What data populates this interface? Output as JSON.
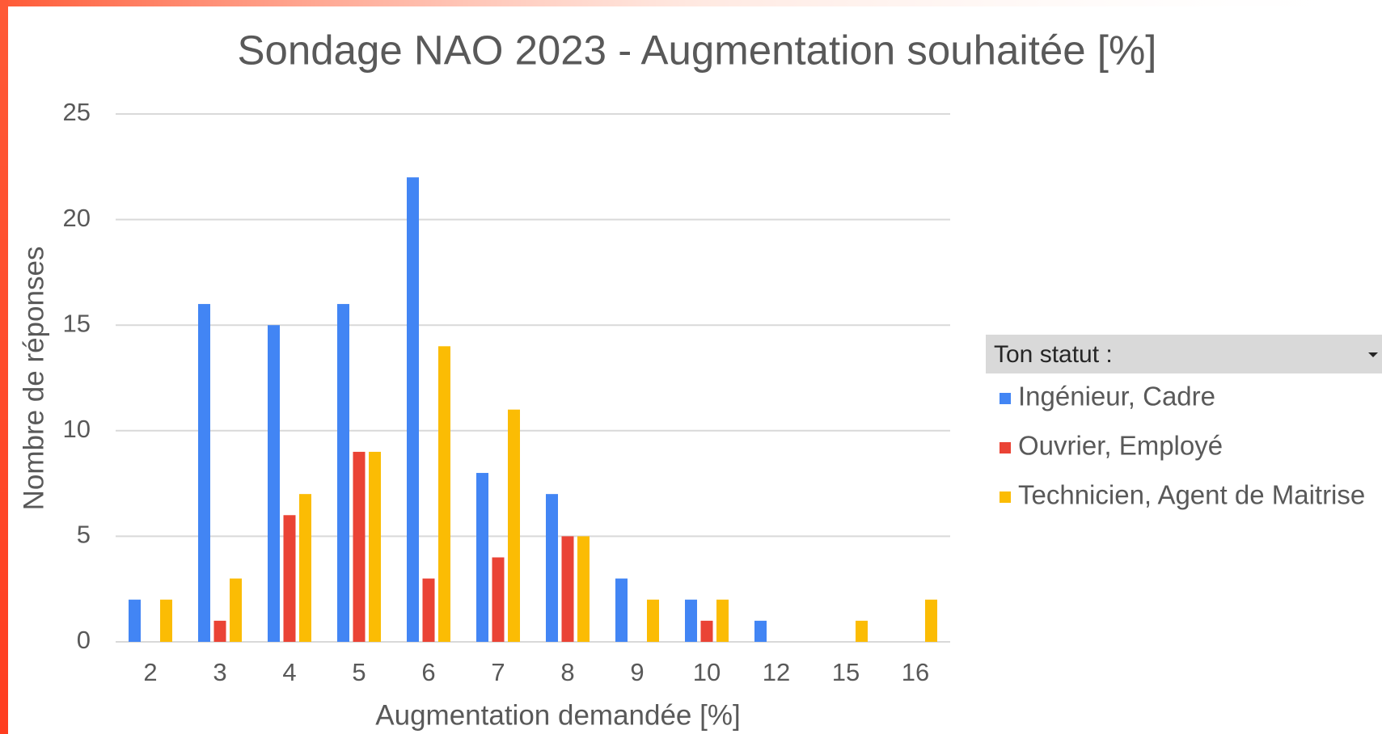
{
  "chart_data": {
    "type": "bar",
    "title": "Sondage NAO 2023 - Augmentation souhaitée [%]",
    "xlabel": "Augmentation demandée [%]",
    "ylabel": "Nombre de réponses",
    "legend_title": "Ton statut :",
    "categories": [
      "2",
      "3",
      "4",
      "5",
      "6",
      "7",
      "8",
      "9",
      "10",
      "12",
      "15",
      "16"
    ],
    "series": [
      {
        "name": "Ingénieur, Cadre",
        "color": "#4285f4",
        "values": [
          2,
          16,
          15,
          16,
          22,
          8,
          7,
          3,
          2,
          1,
          0,
          0
        ]
      },
      {
        "name": "Ouvrier, Employé",
        "color": "#ea4335",
        "values": [
          0,
          1,
          6,
          9,
          3,
          4,
          5,
          0,
          1,
          0,
          0,
          0
        ]
      },
      {
        "name": "Technicien, Agent de Maitrise",
        "color": "#fbbc04",
        "values": [
          2,
          3,
          7,
          9,
          14,
          11,
          5,
          2,
          2,
          0,
          1,
          2
        ]
      }
    ],
    "ylim": [
      0,
      25
    ],
    "yticks": [
      0,
      5,
      10,
      15,
      20,
      25
    ],
    "grid": true,
    "legend": "right"
  }
}
